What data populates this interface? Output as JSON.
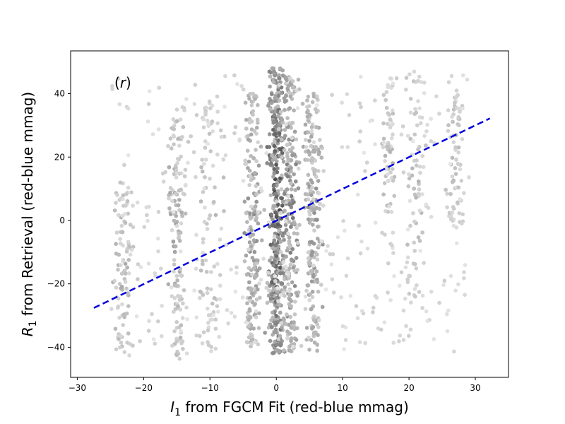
{
  "chart_data": {
    "type": "heatmap",
    "subtype": "hexbin",
    "title": "",
    "panel_label_open": "(",
    "panel_label_letter": "r",
    "panel_label_close": ")",
    "xlabel_symbol": "I",
    "xlabel_subscript": "1",
    "xlabel_rest": " from FGCM Fit (red-blue mmag)",
    "ylabel_symbol": "R",
    "ylabel_subscript": "1",
    "ylabel_rest": " from Retrieval (red-blue mmag)",
    "xlim": [
      -31,
      35
    ],
    "ylim": [
      -49.5,
      53.5
    ],
    "x_ticks": [
      -30,
      -20,
      -10,
      0,
      10,
      20,
      30
    ],
    "y_ticks": [
      -40,
      -20,
      0,
      20,
      40
    ],
    "x_tick_labels": [
      "−30",
      "−20",
      "−10",
      "0",
      "10",
      "20",
      "30"
    ],
    "y_tick_labels": [
      "−40",
      "−20",
      "0",
      "20",
      "40"
    ],
    "grid": false,
    "colormap": "greys",
    "fit_line": {
      "x": [
        -27.5,
        32.2
      ],
      "y": [
        -27.6,
        32.2
      ],
      "style": "dashed",
      "color": "#0000dd"
    },
    "density_columns": [
      {
        "x": -23,
        "width": 1.5,
        "count": 90,
        "ymin": -44,
        "ymax": 12,
        "intensity": 0.35
      },
      {
        "x": -15,
        "width": 1.2,
        "count": 130,
        "ymin": -44,
        "ymax": 36,
        "intensity": 0.4
      },
      {
        "x": -10,
        "width": 2.0,
        "count": 90,
        "ymin": -42,
        "ymax": 40,
        "intensity": 0.3
      },
      {
        "x": -3.5,
        "width": 1.2,
        "count": 180,
        "ymin": -40,
        "ymax": 40,
        "intensity": 0.5
      },
      {
        "x": 0,
        "width": 1.2,
        "count": 400,
        "ymin": -42,
        "ymax": 48,
        "intensity": 0.85
      },
      {
        "x": 2,
        "width": 1.2,
        "count": 220,
        "ymin": -42,
        "ymax": 46,
        "intensity": 0.6
      },
      {
        "x": 5.5,
        "width": 1.3,
        "count": 200,
        "ymin": -42,
        "ymax": 40,
        "intensity": 0.5
      },
      {
        "x": 17,
        "width": 0.8,
        "count": 60,
        "ymin": -10,
        "ymax": 46,
        "intensity": 0.3
      },
      {
        "x": 21,
        "width": 1.5,
        "count": 70,
        "ymin": -28,
        "ymax": 48,
        "intensity": 0.3
      },
      {
        "x": 27,
        "width": 1.2,
        "count": 70,
        "ymin": -3,
        "ymax": 42,
        "intensity": 0.3
      }
    ],
    "background_count": 350,
    "colors": {
      "fit_line": "#0000dd",
      "axes": "#000000",
      "background": "#ffffff"
    }
  }
}
